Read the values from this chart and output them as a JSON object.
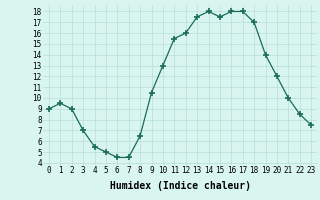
{
  "x": [
    0,
    1,
    2,
    3,
    4,
    5,
    6,
    7,
    8,
    9,
    10,
    11,
    12,
    13,
    14,
    15,
    16,
    17,
    18,
    19,
    20,
    21,
    22,
    23
  ],
  "y": [
    9.0,
    9.5,
    9.0,
    7.0,
    5.5,
    5.0,
    4.5,
    4.5,
    6.5,
    10.5,
    13.0,
    15.5,
    16.0,
    17.5,
    18.0,
    17.5,
    18.0,
    18.0,
    17.0,
    14.0,
    12.0,
    10.0,
    8.5,
    7.5
  ],
  "xlim": [
    -0.5,
    23.5
  ],
  "ylim": [
    3.8,
    18.6
  ],
  "yticks": [
    4,
    5,
    6,
    7,
    8,
    9,
    10,
    11,
    12,
    13,
    14,
    15,
    16,
    17,
    18
  ],
  "xticks": [
    0,
    1,
    2,
    3,
    4,
    5,
    6,
    7,
    8,
    9,
    10,
    11,
    12,
    13,
    14,
    15,
    16,
    17,
    18,
    19,
    20,
    21,
    22,
    23
  ],
  "xlabel": "Humidex (Indice chaleur)",
  "line_color": "#1a6b5a",
  "marker": "+",
  "marker_size": 4,
  "bg_color": "#d8f5f0",
  "grid_color": "#b8ddd8",
  "tick_fontsize": 5.5,
  "label_fontsize": 7
}
